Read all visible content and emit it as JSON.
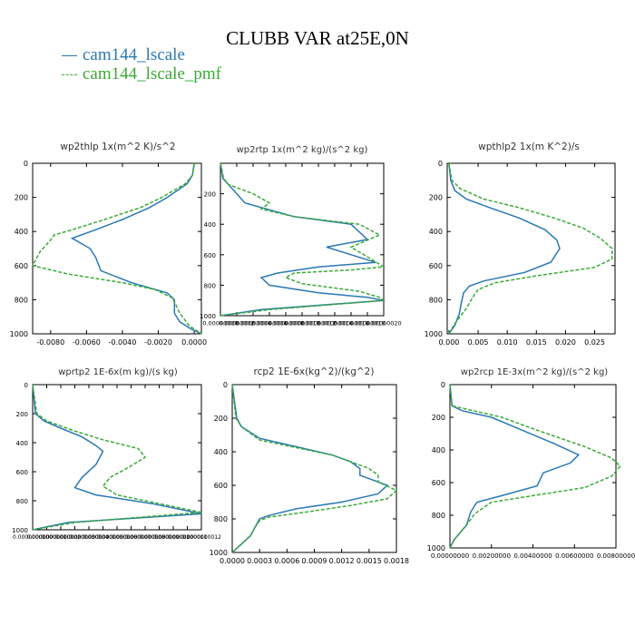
{
  "title": "CLUBB VAR at25E,0N",
  "legend": [
    {
      "label": "cam144_lscale",
      "color": "#2a78b4",
      "dash": false
    },
    {
      "label": "cam144_lscale_pmf",
      "color": "#3aaa35",
      "dash": true
    }
  ],
  "chart_data": [
    {
      "type": "line",
      "title": "wp2thlp   1x(m^2 K)/s^2",
      "xlim": [
        -0.009,
        0.0004
      ],
      "ylim": [
        1000,
        0
      ],
      "xticks": [
        -0.008,
        -0.006,
        -0.004,
        -0.002,
        0.0
      ],
      "xtick_labels": [
        "-0.0080",
        "-0.0060",
        "-0.0040",
        "-0.0020",
        "0.0000"
      ],
      "yticks": [
        0,
        200,
        400,
        600,
        800,
        1000
      ],
      "ytick_labels": [
        "0",
        "200",
        "400",
        "600",
        "800",
        "1000"
      ],
      "series": [
        {
          "name": "cam144_lscale",
          "x": [
            0.0,
            -0.0001,
            -0.0004,
            -0.0015,
            -0.0025,
            -0.004,
            -0.0055,
            -0.0068,
            -0.0058,
            -0.0055,
            -0.0052,
            -0.0035,
            -0.0015,
            -0.0011,
            -0.0011,
            -0.0008,
            -0.0002,
            0.0004
          ],
          "y": [
            0,
            70,
            120,
            200,
            260,
            330,
            390,
            440,
            500,
            550,
            630,
            700,
            760,
            800,
            880,
            930,
            970,
            1000
          ]
        },
        {
          "name": "cam144_lscale_pmf",
          "x": [
            0.0,
            -0.0001,
            -0.0005,
            -0.0018,
            -0.003,
            -0.005,
            -0.0068,
            -0.0078,
            -0.008,
            -0.0086,
            -0.009,
            -0.007,
            -0.004,
            -0.0022,
            -0.0012,
            -0.0008,
            -0.0003,
            0.0004
          ],
          "y": [
            0,
            70,
            120,
            200,
            260,
            330,
            390,
            420,
            450,
            520,
            600,
            650,
            700,
            740,
            790,
            880,
            950,
            1000
          ]
        }
      ]
    },
    {
      "type": "line",
      "title": "wp2rtp   1x(m^2 kg)/(s^2 kg)",
      "xlim": [
        0.0,
        2e-07
      ],
      "ylim": [
        1000,
        0
      ],
      "xticks": [
        0.0,
        2e-08,
        4e-08,
        6e-08,
        8e-08,
        1e-07,
        1.2e-07,
        1.4e-07,
        1.6e-07,
        1.8e-07,
        2e-07
      ],
      "xtick_labels": [
        "0.00000000",
        "0.00000002",
        "0.00000004",
        "0.00000006",
        "0.00000008",
        "0.00000010",
        "0.00000012",
        "0.00000014",
        "0.00000016",
        "0.00000018",
        "0.00000020"
      ],
      "yticks": [
        200,
        400,
        600,
        800,
        1000
      ],
      "ytick_labels": [
        "200",
        "400",
        "600",
        "800",
        "1000"
      ],
      "series": [
        {
          "name": "cam144_lscale",
          "x": [
            0.0,
            3e-09,
            1e-08,
            2e-08,
            3e-08,
            9e-08,
            1.6e-07,
            1.7e-07,
            1.8e-07,
            1.3e-07,
            1.6e-07,
            1.9e-07,
            1.2e-07,
            7e-08,
            5e-08,
            6e-08,
            1.2e-07,
            1.8e-07,
            2e-07,
            5e-08,
            0.0
          ],
          "y": [
            0,
            100,
            140,
            200,
            260,
            350,
            400,
            450,
            500,
            550,
            600,
            650,
            680,
            720,
            750,
            800,
            850,
            880,
            900,
            960,
            1000
          ]
        },
        {
          "name": "cam144_lscale_pmf",
          "x": [
            0.0,
            4e-09,
            1e-08,
            4e-08,
            6e-08,
            5e-08,
            9e-08,
            1.7e-07,
            1.95e-07,
            1.6e-07,
            1.85e-07,
            2e-07,
            1.6e-07,
            9e-08,
            8e-08,
            1e-07,
            1.7e-07,
            1.95e-07,
            2e-07,
            6e-08,
            0.0
          ],
          "y": [
            0,
            100,
            140,
            200,
            260,
            300,
            350,
            400,
            470,
            550,
            630,
            680,
            700,
            720,
            750,
            790,
            840,
            880,
            900,
            960,
            1000
          ]
        }
      ]
    },
    {
      "type": "line",
      "title": "wpthlp2   1x(m K^2)/s",
      "xlim": [
        -0.0003,
        0.0285
      ],
      "ylim": [
        1000,
        0
      ],
      "xticks": [
        0.0,
        0.005,
        0.01,
        0.015,
        0.02,
        0.025
      ],
      "xtick_labels": [
        "0.000",
        "0.005",
        "0.010",
        "0.015",
        "0.020",
        "0.025"
      ],
      "yticks": [
        0,
        200,
        400,
        600,
        800,
        1000
      ],
      "ytick_labels": [
        "0",
        "200",
        "400",
        "600",
        "800",
        "1000"
      ],
      "series": [
        {
          "name": "cam144_lscale",
          "x": [
            0.0,
            0.0003,
            0.001,
            0.003,
            0.007,
            0.012,
            0.0165,
            0.0185,
            0.019,
            0.0175,
            0.013,
            0.006,
            0.0035,
            0.0025,
            0.0021,
            0.0018,
            0.001,
            0.0
          ],
          "y": [
            0,
            100,
            160,
            210,
            260,
            320,
            390,
            450,
            500,
            580,
            640,
            690,
            720,
            760,
            820,
            880,
            950,
            1000
          ]
        },
        {
          "name": "cam144_lscale_pmf",
          "x": [
            0.0,
            0.0005,
            0.002,
            0.006,
            0.012,
            0.018,
            0.023,
            0.026,
            0.028,
            0.028,
            0.025,
            0.015,
            0.008,
            0.005,
            0.004,
            0.003,
            0.001,
            0.0
          ],
          "y": [
            0,
            100,
            150,
            210,
            260,
            320,
            380,
            440,
            500,
            560,
            610,
            660,
            700,
            740,
            790,
            850,
            940,
            1000
          ]
        }
      ]
    },
    {
      "type": "line",
      "title": "wprtp2   1E-6x(m kg)/(s kg)",
      "xlim": [
        0.0,
        1.2e-09
      ],
      "ylim": [
        1000,
        0
      ],
      "xticks": [
        0.0,
        1e-10,
        2e-10,
        3e-10,
        4e-10,
        5e-10,
        6e-10,
        7e-10,
        8e-10,
        9e-10,
        1e-09,
        1.1e-09,
        1.2e-09
      ],
      "xtick_labels": [
        "0.0000000000",
        "0.0000000001",
        "0.0000000002",
        "0.0000000003",
        "0.0000000004",
        "0.0000000005",
        "0.0000000006",
        "0.0000000007",
        "0.0000000008",
        "0.0000000009",
        "0.0000000010",
        "0.0000000011",
        "0.0000000012"
      ],
      "yticks": [
        0,
        200,
        400,
        600,
        800,
        1000
      ],
      "ytick_labels": [
        "0",
        "200",
        "400",
        "600",
        "800",
        "1000"
      ],
      "series": [
        {
          "name": "cam144_lscale",
          "x": [
            0.0,
            2e-11,
            8e-11,
            2e-10,
            3.5e-10,
            4.5e-10,
            5e-10,
            4.5e-10,
            3.5e-10,
            3e-10,
            4.5e-10,
            8.5e-10,
            1.2e-09,
            2.5e-10,
            0.0
          ],
          "y": [
            0,
            200,
            250,
            300,
            360,
            420,
            460,
            550,
            640,
            710,
            760,
            820,
            890,
            950,
            1000
          ]
        },
        {
          "name": "cam144_lscale_pmf",
          "x": [
            0.0,
            3e-11,
            1e-10,
            3e-10,
            5e-10,
            7.5e-10,
            8e-10,
            7e-10,
            5.5e-10,
            5e-10,
            6e-10,
            9e-10,
            1.2e-09,
            3e-10,
            0.0
          ],
          "y": [
            0,
            200,
            250,
            320,
            380,
            440,
            500,
            560,
            640,
            700,
            760,
            820,
            880,
            950,
            1000
          ]
        }
      ]
    },
    {
      "type": "line",
      "title": "rcp2   1E-6x(kg^2)/(kg^2)",
      "xlim": [
        0.0,
        0.0018
      ],
      "ylim": [
        1000,
        0
      ],
      "xticks": [
        0.0,
        0.0003,
        0.0006,
        0.0009,
        0.0012,
        0.0015,
        0.0018
      ],
      "xtick_labels": [
        "0.0000",
        "0.0003",
        "0.0006",
        "0.0009",
        "0.0012",
        "0.0015",
        "0.0018"
      ],
      "yticks": [
        0,
        200,
        400,
        600,
        800,
        1000
      ],
      "ytick_labels": [
        "0",
        "200",
        "400",
        "600",
        "800",
        "1000"
      ],
      "series": [
        {
          "name": "cam144_lscale",
          "x": [
            0.0,
            5e-05,
            0.0001,
            0.0003,
            0.0007,
            0.0011,
            0.0013,
            0.0014,
            0.0014,
            0.0015,
            0.0017,
            0.0016,
            0.0012,
            0.0007,
            0.0004,
            0.0003,
            0.00025,
            0.0002,
            0.0001,
            0.0
          ],
          "y": [
            0,
            200,
            250,
            320,
            370,
            420,
            460,
            500,
            540,
            560,
            600,
            650,
            700,
            740,
            780,
            800,
            850,
            900,
            950,
            1000
          ]
        },
        {
          "name": "cam144_lscale_pmf",
          "x": [
            0.0,
            4e-05,
            0.0001,
            0.0003,
            0.0007,
            0.0011,
            0.0013,
            0.0015,
            0.0016,
            0.0016,
            0.0018,
            0.0017,
            0.0013,
            0.0008,
            0.0004,
            0.0003,
            0.00025,
            0.0002,
            0.0001,
            0.0
          ],
          "y": [
            0,
            200,
            250,
            330,
            375,
            420,
            460,
            500,
            540,
            580,
            630,
            680,
            720,
            760,
            790,
            810,
            850,
            900,
            950,
            1000
          ]
        }
      ]
    },
    {
      "type": "line",
      "title": "wp2rcp   1E-3x(m^2 kg)/(s^2 kg)",
      "xlim": [
        0.0,
        0.008
      ],
      "ylim": [
        1000,
        0
      ],
      "xticks": [
        0.0,
        0.002,
        0.004,
        0.006,
        0.008
      ],
      "xtick_labels": [
        "0.00000000",
        "0.00200000",
        "0.00400000",
        "0.00600000",
        "0.00800000"
      ],
      "yticks": [
        0,
        200,
        400,
        600,
        800,
        1000
      ],
      "ytick_labels": [
        "0",
        "200",
        "400",
        "600",
        "800",
        "1000"
      ],
      "series": [
        {
          "name": "cam144_lscale",
          "x": [
            0.0,
            0.0001,
            0.0006,
            0.002,
            0.0035,
            0.005,
            0.0062,
            0.0058,
            0.0045,
            0.0042,
            0.0025,
            0.0013,
            0.001,
            0.0008,
            0.0002,
            0.0
          ],
          "y": [
            0,
            130,
            160,
            200,
            280,
            360,
            430,
            480,
            540,
            620,
            680,
            720,
            780,
            860,
            950,
            1000
          ]
        },
        {
          "name": "cam144_lscale_pmf",
          "x": [
            0.0,
            0.0001,
            0.0008,
            0.0025,
            0.004,
            0.0065,
            0.0078,
            0.0082,
            0.0078,
            0.0065,
            0.004,
            0.002,
            0.0012,
            0.0008,
            0.0002,
            0.0
          ],
          "y": [
            0,
            130,
            150,
            200,
            270,
            380,
            450,
            500,
            560,
            630,
            680,
            720,
            790,
            860,
            950,
            1000
          ]
        }
      ]
    }
  ]
}
